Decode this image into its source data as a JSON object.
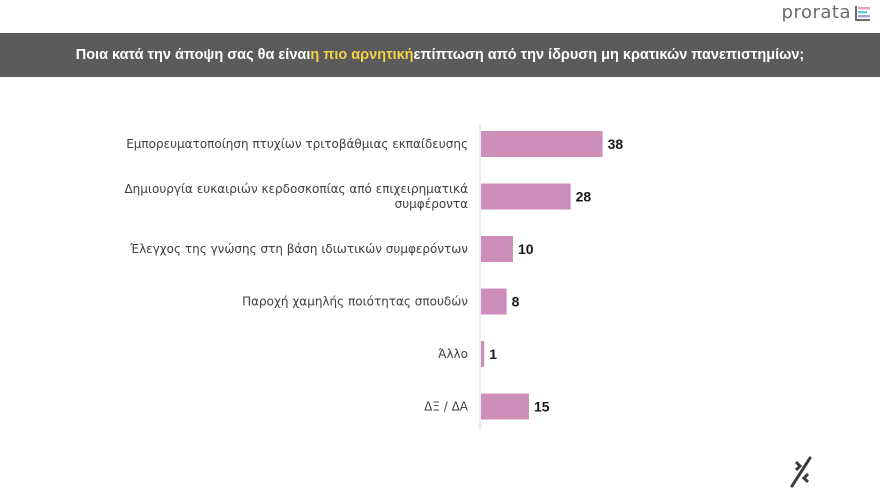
{
  "brand": {
    "logo_text": "prorata",
    "logo_bar_colors": [
      "#e6a0c4",
      "#6ec4e8",
      "#9ba7d8",
      "#6b6b6b"
    ]
  },
  "header": {
    "title_before": "Ποια κατά την άποψη σας θα είναι ",
    "title_highlight": "η πιο αρνητική",
    "title_after": " επίπτωση από την ίδρυση μη κρατικών πανεπιστημίων;"
  },
  "chart_data": {
    "type": "bar",
    "orientation": "horizontal",
    "categories": [
      [
        "Εμπορευματοποίηση πτυχίων τριτοβάθμιας εκπαίδευσης"
      ],
      [
        "Δημιουργία ευκαιριών κερδοσκοπίας από επιχειρηματικά",
        "συμφέροντα"
      ],
      [
        "Έλεγχος της γνώσης στη βάση ιδιωτικών συμφερόντων"
      ],
      [
        "Παροχή χαμηλής ποιότητας σπουδών"
      ],
      [
        "Άλλο"
      ],
      [
        "ΔΞ / ΔΑ"
      ]
    ],
    "values": [
      38,
      28,
      10,
      8,
      1,
      15
    ],
    "bar_color": "#cd8fb9",
    "grid": false
  },
  "footer": {
    "icon": "percent-icon"
  }
}
